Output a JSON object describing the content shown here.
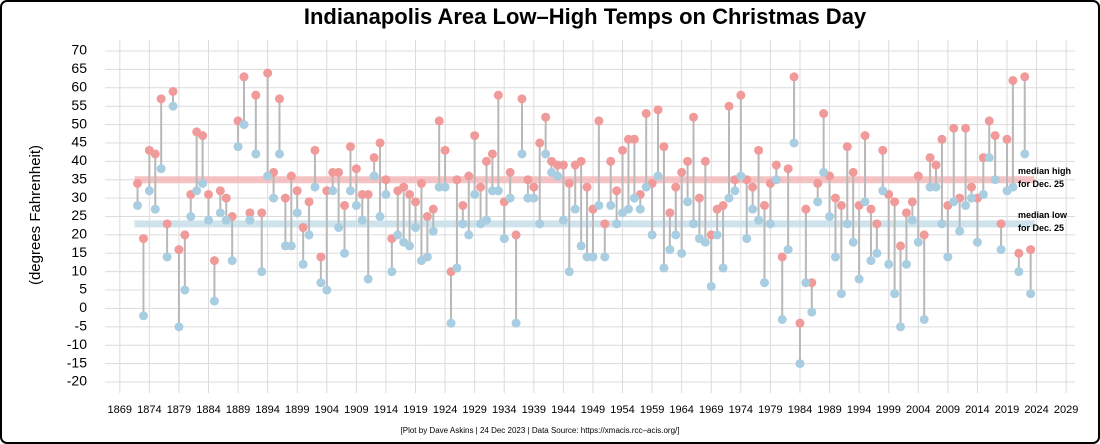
{
  "chart_data": {
    "type": "dumbbell",
    "title": "Indianapolis Area Low–High Temps on Christmas Day",
    "y_label": "(degrees Fahrenheit)",
    "source": "[Plot by Dave Askins | 24 Dec 2023 | Data Source: https://xmacis.rcc–acis.org/]",
    "x": [
      1872,
      1873,
      1874,
      1875,
      1876,
      1877,
      1878,
      1879,
      1880,
      1881,
      1882,
      1883,
      1884,
      1885,
      1886,
      1887,
      1888,
      1889,
      1890,
      1891,
      1892,
      1893,
      1894,
      1895,
      1896,
      1897,
      1898,
      1899,
      1900,
      1901,
      1902,
      1903,
      1904,
      1905,
      1906,
      1907,
      1908,
      1909,
      1910,
      1911,
      1912,
      1913,
      1914,
      1915,
      1916,
      1917,
      1918,
      1919,
      1920,
      1921,
      1922,
      1923,
      1924,
      1925,
      1926,
      1927,
      1928,
      1929,
      1930,
      1931,
      1932,
      1933,
      1934,
      1935,
      1936,
      1937,
      1938,
      1939,
      1940,
      1941,
      1942,
      1943,
      1944,
      1945,
      1946,
      1947,
      1948,
      1949,
      1950,
      1951,
      1952,
      1953,
      1954,
      1955,
      1956,
      1957,
      1958,
      1959,
      1960,
      1961,
      1962,
      1963,
      1964,
      1965,
      1966,
      1967,
      1968,
      1969,
      1970,
      1971,
      1972,
      1973,
      1974,
      1975,
      1976,
      1977,
      1978,
      1979,
      1980,
      1981,
      1982,
      1983,
      1984,
      1985,
      1986,
      1987,
      1988,
      1989,
      1990,
      1991,
      1992,
      1993,
      1994,
      1995,
      1996,
      1997,
      1998,
      1999,
      2000,
      2001,
      2002,
      2003,
      2004,
      2005,
      2006,
      2007,
      2008,
      2009,
      2010,
      2011,
      2012,
      2013,
      2014,
      2015,
      2016,
      2017,
      2018,
      2019,
      2020,
      2021,
      2022,
      2023
    ],
    "series": [
      {
        "name": "High",
        "color": "#f09a9a",
        "values": [
          34,
          19,
          43,
          42,
          57,
          23,
          59,
          16,
          20,
          31,
          48,
          47,
          31,
          13,
          32,
          30,
          25,
          51,
          63,
          26,
          58,
          26,
          64,
          37,
          57,
          30,
          36,
          32,
          22,
          29,
          43,
          14,
          32,
          37,
          37,
          28,
          44,
          38,
          31,
          31,
          41,
          45,
          35,
          19,
          32,
          33,
          31,
          29,
          34,
          25,
          27,
          51,
          43,
          10,
          35,
          28,
          36,
          47,
          33,
          40,
          42,
          58,
          29,
          37,
          20,
          57,
          35,
          33,
          45,
          52,
          40,
          39,
          39,
          34,
          39,
          40,
          33,
          27,
          51,
          23,
          40,
          32,
          43,
          46,
          46,
          31,
          53,
          34,
          54,
          44,
          26,
          33,
          37,
          40,
          52,
          30,
          40,
          20,
          27,
          28,
          55,
          35,
          58,
          35,
          33,
          43,
          28,
          34,
          39,
          14,
          38,
          63,
          -4,
          27,
          7,
          34,
          53,
          36,
          30,
          28,
          44,
          37,
          28,
          47,
          27,
          23,
          43,
          31,
          29,
          17,
          26,
          29,
          36,
          20,
          41,
          39,
          46,
          28,
          49,
          30,
          49,
          33,
          30,
          41,
          51,
          47,
          23,
          46,
          62,
          15,
          63,
          16
        ]
      },
      {
        "name": "Low",
        "color": "#a9cde1",
        "values": [
          28,
          -2,
          32,
          27,
          38,
          14,
          55,
          -5,
          5,
          25,
          32,
          34,
          24,
          2,
          26,
          24,
          13,
          44,
          50,
          24,
          42,
          10,
          36,
          30,
          42,
          17,
          17,
          26,
          12,
          20,
          33,
          7,
          5,
          32,
          22,
          15,
          32,
          28,
          24,
          8,
          36,
          25,
          31,
          10,
          20,
          18,
          17,
          22,
          13,
          14,
          21,
          33,
          33,
          -4,
          11,
          23,
          20,
          31,
          23,
          24,
          32,
          32,
          19,
          30,
          -4,
          42,
          30,
          30,
          23,
          42,
          37,
          36,
          24,
          10,
          27,
          17,
          14,
          14,
          28,
          14,
          28,
          23,
          26,
          27,
          30,
          27,
          33,
          20,
          36,
          11,
          16,
          20,
          15,
          29,
          23,
          19,
          18,
          6,
          20,
          11,
          30,
          32,
          36,
          19,
          27,
          24,
          7,
          23,
          35,
          -3,
          16,
          45,
          -15,
          7,
          -1,
          29,
          37,
          25,
          14,
          4,
          23,
          18,
          8,
          29,
          13,
          15,
          32,
          12,
          4,
          -5,
          12,
          24,
          18,
          -3,
          33,
          33,
          23,
          14,
          29,
          21,
          28,
          30,
          18,
          31,
          41,
          35,
          16,
          32,
          33,
          10,
          42,
          4
        ]
      }
    ],
    "annotations": [
      {
        "text": [
          "median high",
          "for Dec. 25"
        ],
        "value": 35,
        "color": "#f4b9b9"
      },
      {
        "text": [
          "median low",
          "for Dec. 25"
        ],
        "value": 23,
        "color": "#c7dfea"
      }
    ],
    "xlim": [
      1866.5,
      2030.5
    ],
    "ylim": [
      -23,
      73
    ],
    "xticks": [
      1869,
      1874,
      1879,
      1884,
      1889,
      1894,
      1899,
      1904,
      1909,
      1914,
      1919,
      1924,
      1929,
      1934,
      1939,
      1944,
      1949,
      1954,
      1959,
      1964,
      1969,
      1974,
      1979,
      1984,
      1989,
      1994,
      1999,
      2004,
      2009,
      2014,
      2019,
      2024,
      2029
    ],
    "yticks": [
      -20,
      -15,
      -10,
      -5,
      0,
      5,
      10,
      15,
      20,
      25,
      30,
      35,
      40,
      45,
      50,
      55,
      60,
      65,
      70
    ],
    "grid": true,
    "stem_color": "#b8b8b8"
  }
}
